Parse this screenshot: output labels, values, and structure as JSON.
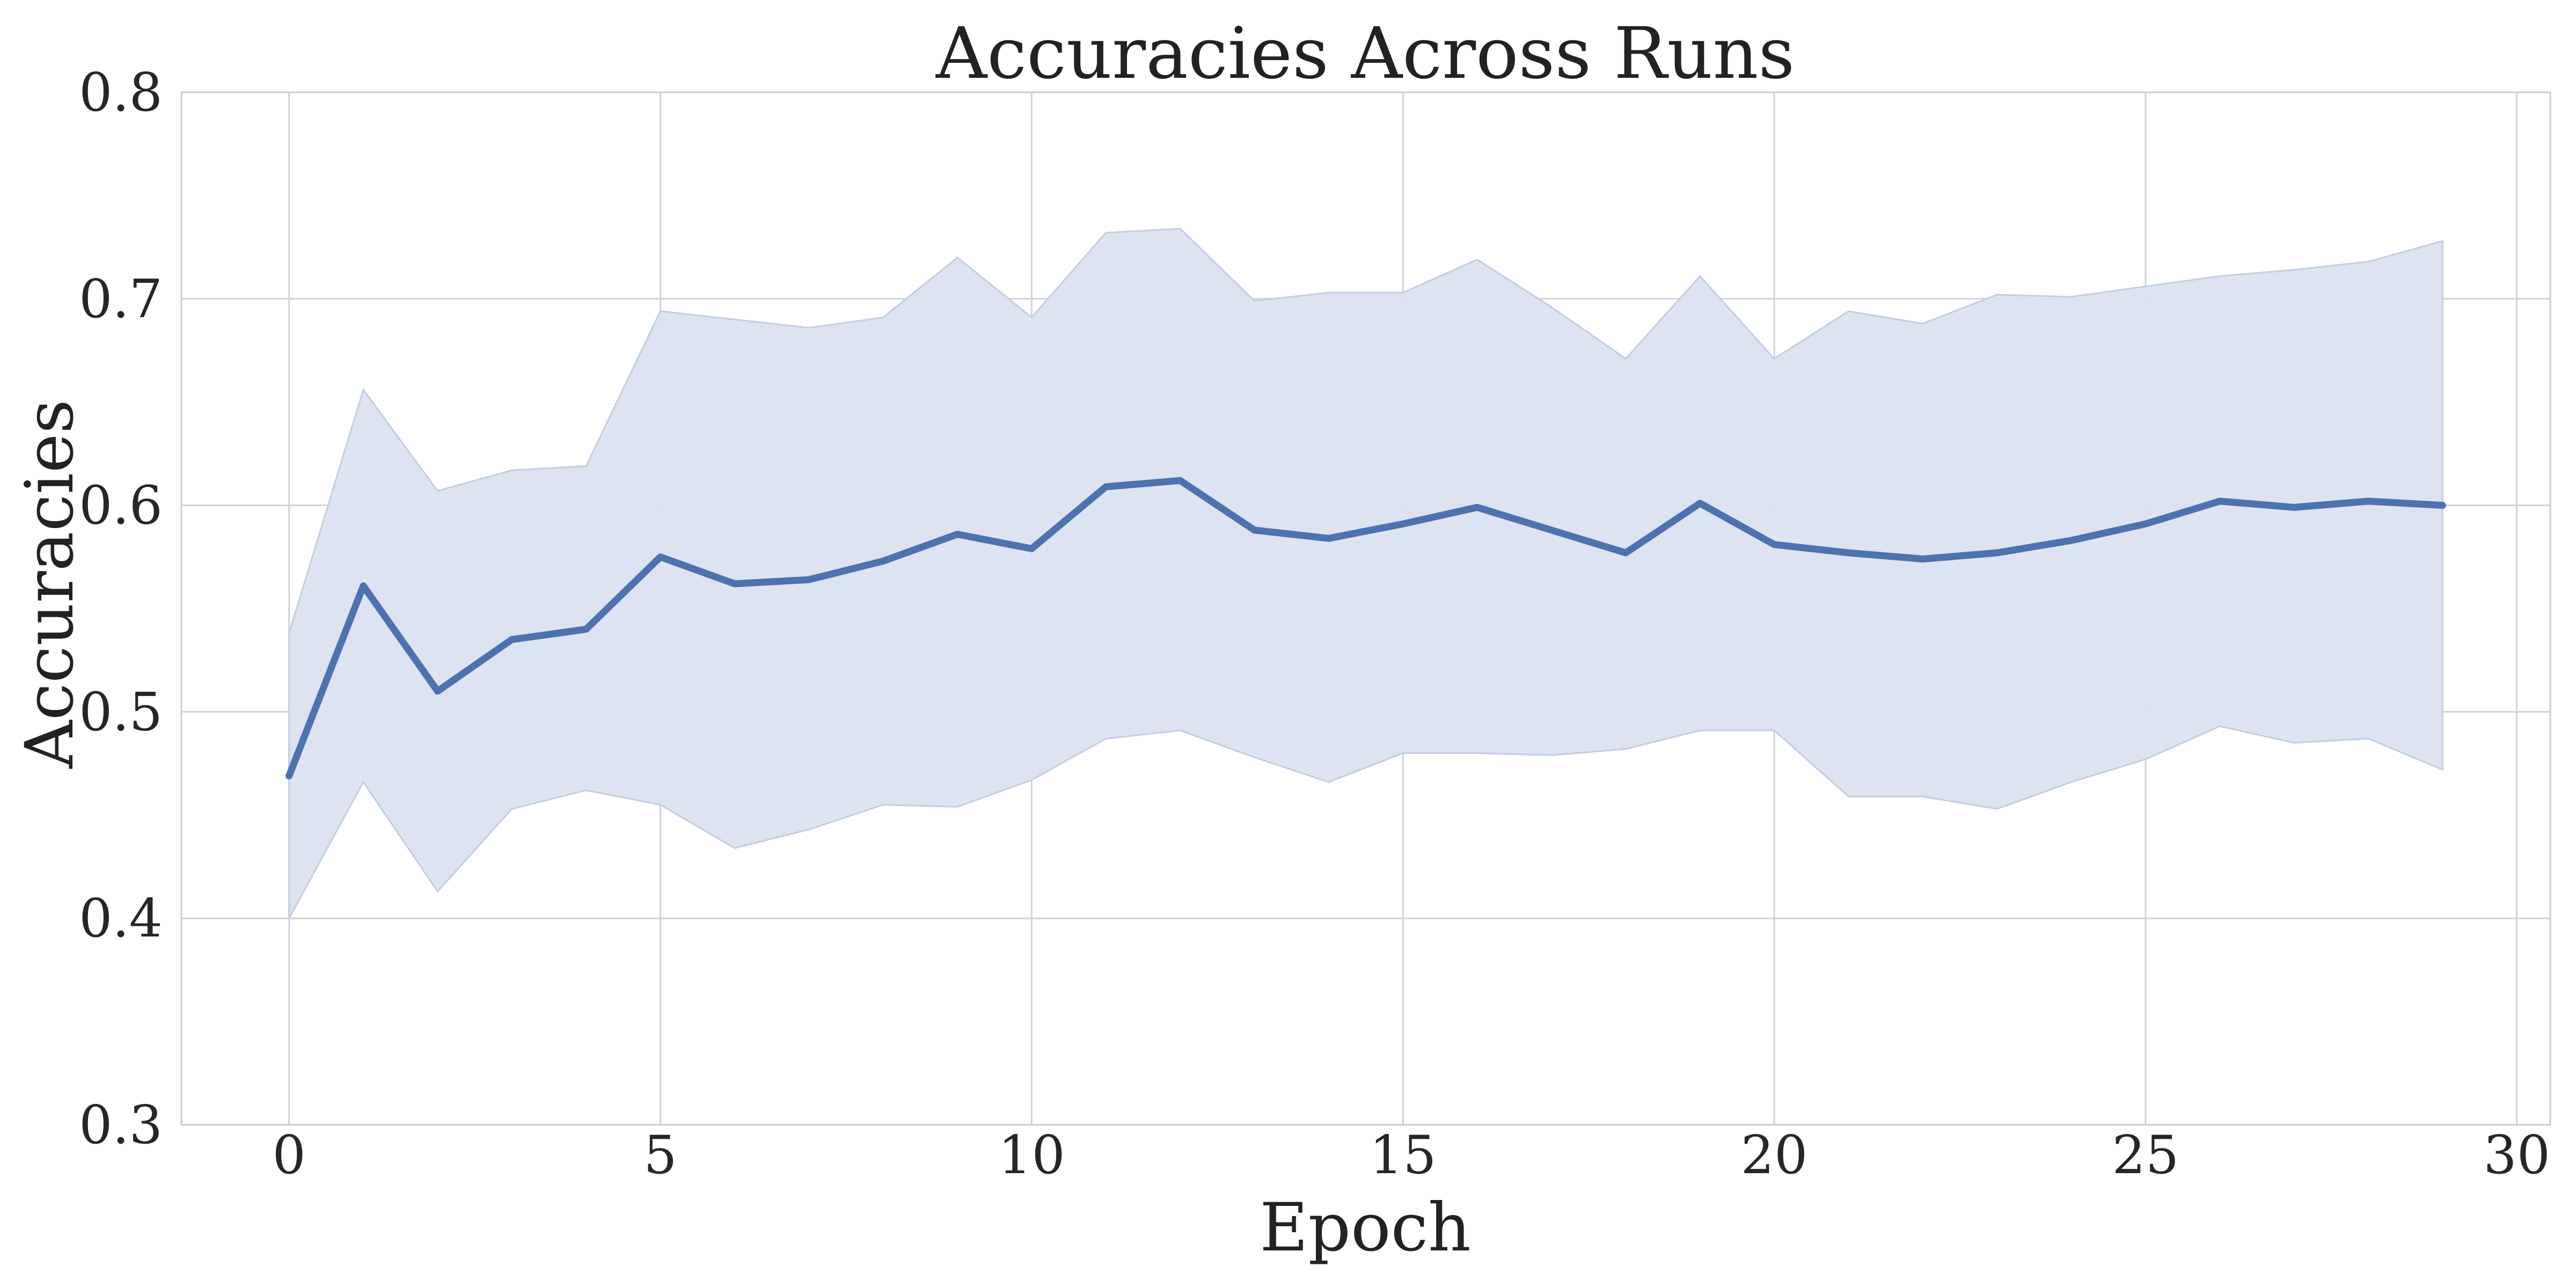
{
  "chart_data": {
    "type": "line",
    "title": "Accuracies Across Runs",
    "xlabel": "Epoch",
    "ylabel": "Accuracies",
    "xlim": [
      -1.45,
      30.45
    ],
    "ylim": [
      0.3,
      0.8
    ],
    "xticks": [
      0,
      5,
      10,
      15,
      20,
      25,
      30
    ],
    "yticks": [
      0.3,
      0.4,
      0.5,
      0.6,
      0.7,
      0.8
    ],
    "xtick_labels": [
      "0",
      "5",
      "10",
      "15",
      "20",
      "25",
      "30"
    ],
    "ytick_labels": [
      "0.3",
      "0.4",
      "0.5",
      "0.6",
      "0.7",
      "0.8"
    ],
    "grid": true,
    "legend": "none",
    "colors": {
      "line": "#4c72b0",
      "band": "#dbe2ef",
      "band_edge": "#c3cde2",
      "grid": "#cfd2d8"
    },
    "x": [
      0,
      1,
      2,
      3,
      4,
      5,
      6,
      7,
      8,
      9,
      10,
      11,
      12,
      13,
      14,
      15,
      16,
      17,
      18,
      19,
      20,
      21,
      22,
      23,
      24,
      25,
      26,
      27,
      28,
      29
    ],
    "series": [
      {
        "values": [
          0.469,
          0.561,
          0.51,
          0.535,
          0.54,
          0.575,
          0.562,
          0.564,
          0.573,
          0.586,
          0.579,
          0.609,
          0.612,
          0.588,
          0.584,
          0.591,
          0.599,
          0.588,
          0.577,
          0.601,
          0.581,
          0.577,
          0.574,
          0.577,
          0.583,
          0.591,
          0.602,
          0.599,
          0.602,
          0.6
        ],
        "lower": [
          0.4,
          0.466,
          0.413,
          0.453,
          0.462,
          0.455,
          0.434,
          0.443,
          0.455,
          0.454,
          0.467,
          0.487,
          0.491,
          0.478,
          0.466,
          0.48,
          0.48,
          0.479,
          0.482,
          0.491,
          0.491,
          0.459,
          0.459,
          0.453,
          0.466,
          0.477,
          0.493,
          0.485,
          0.487,
          0.472
        ],
        "upper": [
          0.538,
          0.656,
          0.607,
          0.617,
          0.619,
          0.694,
          0.69,
          0.686,
          0.691,
          0.72,
          0.691,
          0.732,
          0.734,
          0.699,
          0.703,
          0.703,
          0.719,
          0.696,
          0.671,
          0.711,
          0.671,
          0.694,
          0.688,
          0.702,
          0.701,
          0.706,
          0.711,
          0.714,
          0.718,
          0.728
        ]
      }
    ]
  }
}
